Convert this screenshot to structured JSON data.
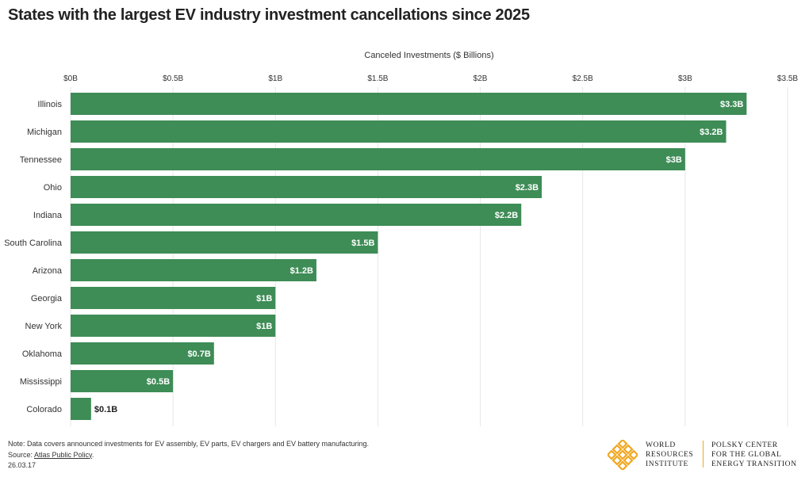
{
  "title": "States with the largest EV industry investment cancellations since 2025",
  "notes": {
    "note": "Note: Data covers announced investments for EV assembly, EV parts, EV chargers and EV battery manufacturing.",
    "source_prefix": "Source: ",
    "source_link": "Atlas Public Policy",
    "source_suffix": ".",
    "date": "26.03.17"
  },
  "logo": {
    "org1": "WORLD\nRESOURCES\nINSTITUTE",
    "org2": "POLSKY CENTER\nFOR THE GLOBAL\nENERGY TRANSITION"
  },
  "colors": {
    "bar": "#3e8c56",
    "grid": "#e6e6e6",
    "label_inside": "#ffffff",
    "label_outside": "#222222",
    "logo": "#f0a71f"
  },
  "chart_data": {
    "type": "bar",
    "orientation": "horizontal",
    "title": "States with the largest EV industry investment cancellations since 2025",
    "xlabel": "Canceled Investments ($ Billions)",
    "xlim": [
      0,
      3.5
    ],
    "x_ticks": [
      0,
      0.5,
      1,
      1.5,
      2,
      2.5,
      3,
      3.5
    ],
    "x_tick_labels": [
      "$0B",
      "$0.5B",
      "$1B",
      "$1.5B",
      "$2B",
      "$2.5B",
      "$3B",
      "$3.5B"
    ],
    "tick_position": "top",
    "grid": true,
    "categories": [
      "Illinois",
      "Michigan",
      "Tennessee",
      "Ohio",
      "Indiana",
      "South Carolina",
      "Arizona",
      "Georgia",
      "New York",
      "Oklahoma",
      "Mississippi",
      "Colorado"
    ],
    "values": [
      3.3,
      3.2,
      3.0,
      2.3,
      2.2,
      1.5,
      1.2,
      1.0,
      1.0,
      0.7,
      0.5,
      0.1
    ],
    "data_labels": [
      "$3.3B",
      "$3.2B",
      "$3B",
      "$2.3B",
      "$2.2B",
      "$1.5B",
      "$1.2B",
      "$1B",
      "$1B",
      "$0.7B",
      "$0.5B",
      "$0.1B"
    ]
  }
}
